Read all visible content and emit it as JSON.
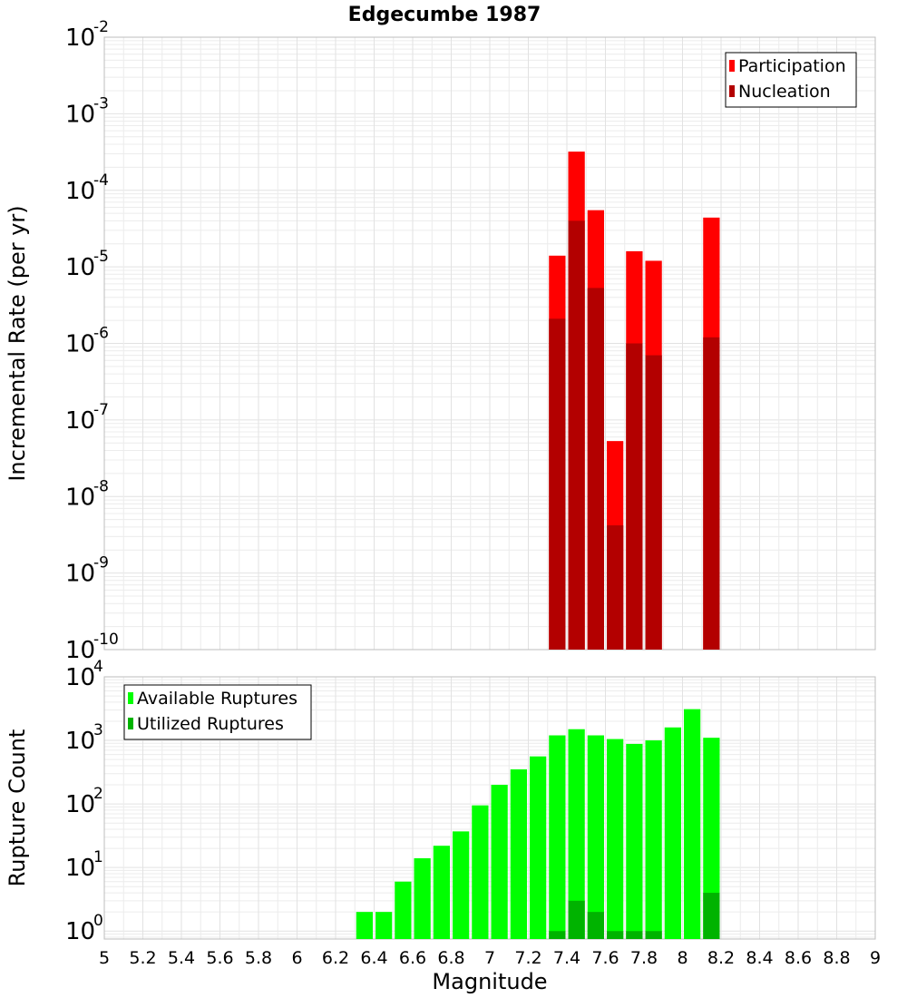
{
  "chart_data": [
    {
      "type": "bar",
      "title": "Edgecumbe 1987",
      "ylabel": "Incremental Rate (per yr)",
      "xlabel": "",
      "yscale": "log",
      "ylim": [
        1e-10,
        0.01
      ],
      "xlim": [
        5,
        9
      ],
      "bar_width": 0.1,
      "x": [
        7.35,
        7.45,
        7.55,
        7.65,
        7.75,
        7.85,
        8.15
      ],
      "legend": {
        "position": "top-right"
      },
      "series": [
        {
          "name": "Participation",
          "color": "#ff0000",
          "values": [
            1.4e-05,
            0.00032,
            5.5e-05,
            5.3e-08,
            1.6e-05,
            1.2e-05,
            4.4e-05
          ]
        },
        {
          "name": "Nucleation",
          "color": "#b30000",
          "values": [
            2.1e-06,
            4e-05,
            5.3e-06,
            4.2e-09,
            1e-06,
            7e-07,
            1.2e-06
          ]
        }
      ]
    },
    {
      "type": "bar",
      "title": "",
      "ylabel": "Rupture Count",
      "xlabel": "Magnitude",
      "yscale": "log",
      "ylim": [
        0.75,
        10000
      ],
      "xlim": [
        5,
        9
      ],
      "bar_width": 0.1,
      "x": [
        6.35,
        6.45,
        6.55,
        6.65,
        6.75,
        6.85,
        6.95,
        7.05,
        7.15,
        7.25,
        7.35,
        7.45,
        7.55,
        7.65,
        7.75,
        7.85,
        7.95,
        8.05,
        8.15
      ],
      "xticks": [
        "5",
        "5.2",
        "5.4",
        "5.6",
        "5.8",
        "6",
        "6.2",
        "6.4",
        "6.6",
        "6.8",
        "7",
        "7.2",
        "7.4",
        "7.6",
        "7.8",
        "8",
        "8.2",
        "8.4",
        "8.6",
        "8.8",
        "9"
      ],
      "legend": {
        "position": "top-left"
      },
      "series": [
        {
          "name": "Available Ruptures",
          "color": "#00ff00",
          "values": [
            2,
            2,
            6,
            14,
            22,
            37,
            95,
            200,
            350,
            560,
            1200,
            1500,
            1200,
            1050,
            880,
            1000,
            1600,
            3100,
            1100
          ]
        },
        {
          "name": "Utilized Ruptures",
          "color": "#00b300",
          "values": [
            0,
            0,
            0,
            0,
            0,
            0,
            0,
            0,
            0,
            0,
            1,
            3,
            2,
            1,
            1,
            1,
            0,
            0,
            4
          ]
        }
      ]
    }
  ]
}
